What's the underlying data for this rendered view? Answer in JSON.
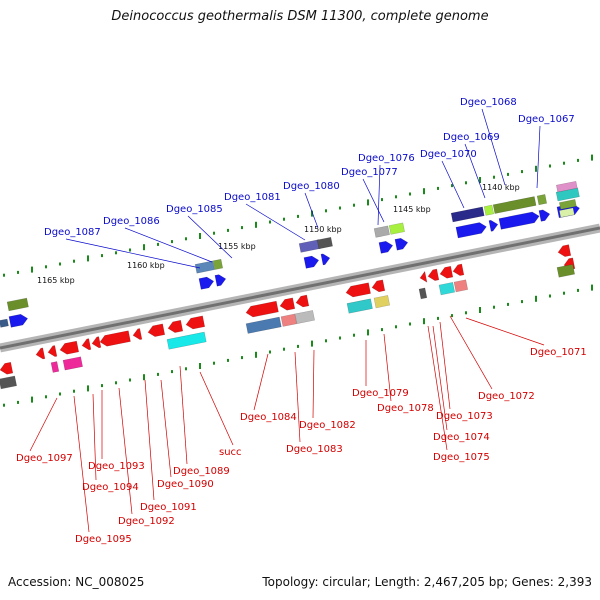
{
  "title": "Deinococcus geothermalis DSM 11300, complete genome",
  "footer": {
    "accession": "Accession: NC_008025",
    "topology": "Topology: circular; Length: 2,467,205 bp; Genes: 2,393"
  },
  "colors": {
    "forward_label": "#0a0acc",
    "reverse_label": "#d40000",
    "backbone": "#888888",
    "tick": "#1a8a1a"
  },
  "kbp_ticks": [
    "1140 kbp",
    "1145 kbp",
    "1150 kbp",
    "1155 kbp",
    "1160 kbp",
    "1165 kbp"
  ],
  "forward_genes": [
    "Dgeo_1068",
    "Dgeo_1067",
    "Dgeo_1069",
    "Dgeo_1070",
    "Dgeo_1076",
    "Dgeo_1077",
    "Dgeo_1080",
    "Dgeo_1081",
    "Dgeo_1085",
    "Dgeo_1086",
    "Dgeo_1087"
  ],
  "reverse_genes": [
    "Dgeo_1071",
    "Dgeo_1072",
    "Dgeo_1073",
    "Dgeo_1074",
    "Dgeo_1075",
    "Dgeo_1078",
    "Dgeo_1079",
    "Dgeo_1084",
    "Dgeo_1082",
    "Dgeo_1083",
    "succ",
    "Dgeo_1089",
    "Dgeo_1090",
    "Dgeo_1091",
    "Dgeo_1092",
    "Dgeo_1093",
    "Dgeo_1094",
    "Dgeo_1095",
    "Dgeo_1097"
  ]
}
